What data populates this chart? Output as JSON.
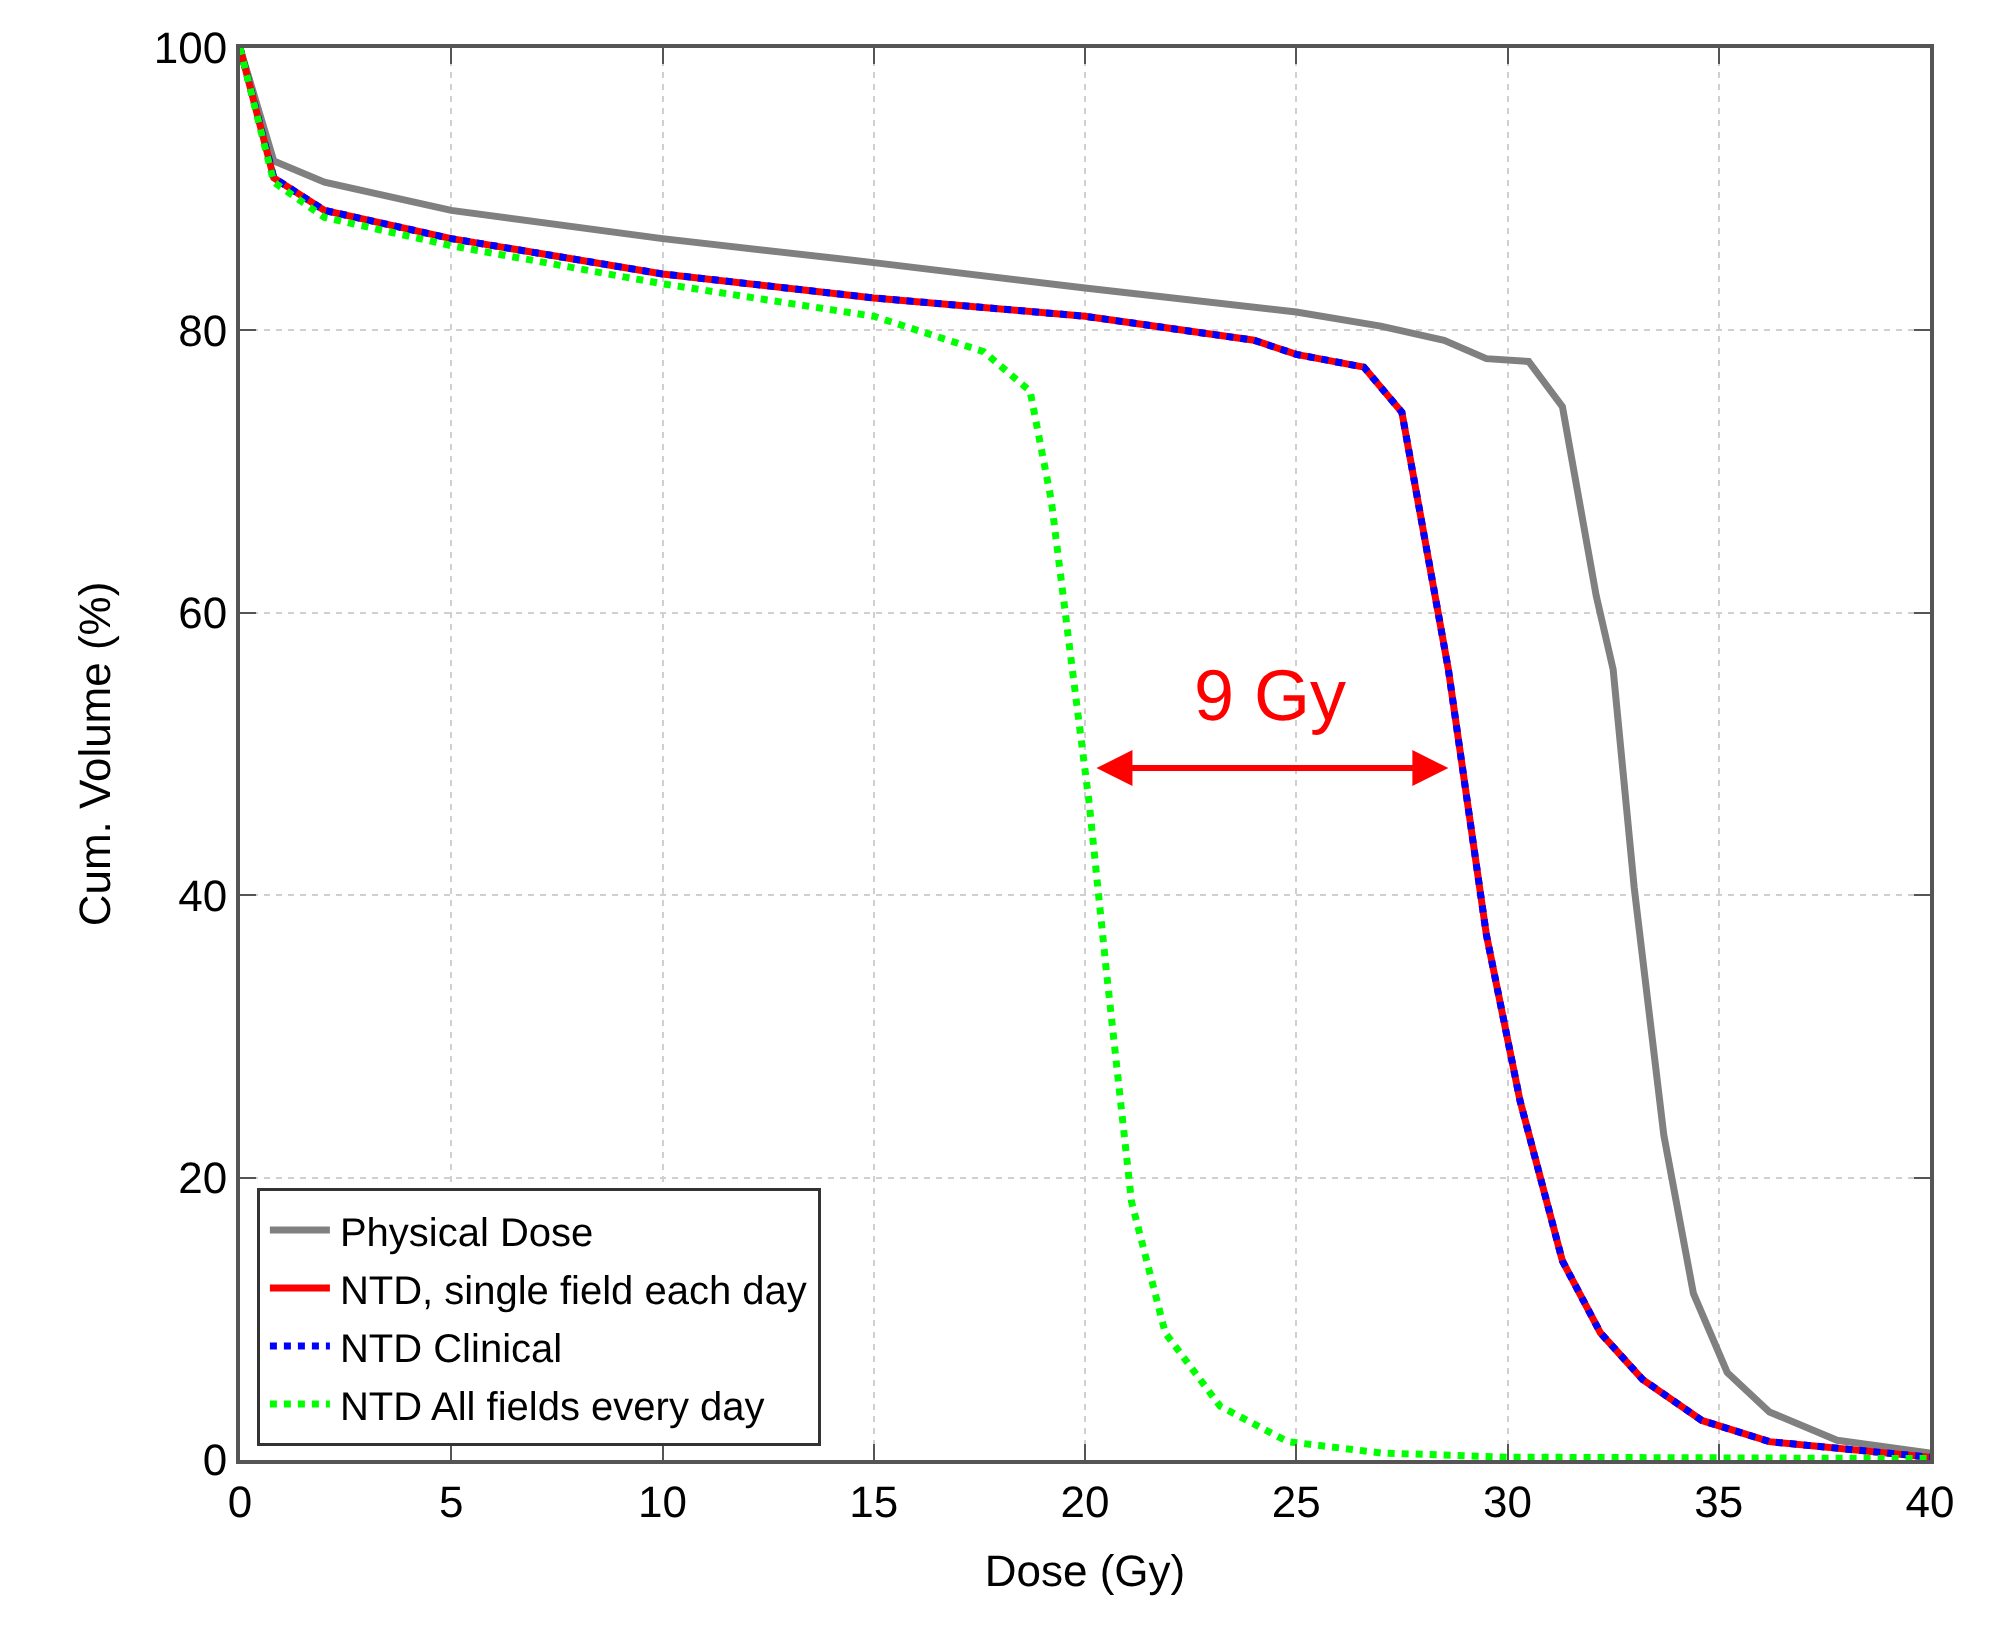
{
  "chart_data": {
    "type": "line",
    "xlabel": "Dose (Gy)",
    "ylabel": "Cum. Volume (%)",
    "xlim": [
      0,
      40
    ],
    "ylim": [
      0,
      100
    ],
    "xticks": [
      0,
      5,
      10,
      15,
      20,
      25,
      30,
      35,
      40
    ],
    "yticks": [
      0,
      20,
      40,
      60,
      80,
      100
    ],
    "grid": true,
    "legend": "bottom left",
    "marker": "none",
    "annotations": [
      "9 Gy"
    ],
    "series": [
      {
        "name": "Physical Dose",
        "color": "#808080",
        "line_style": "solid",
        "x": [
          0,
          0.8,
          2,
          5,
          10,
          15,
          20,
          25,
          27,
          28.5,
          29.5,
          30.5,
          31.3,
          32.1,
          32.5,
          33,
          33.7,
          34.4,
          35.2,
          36.2,
          37.8,
          40
        ],
        "values": [
          100,
          92,
          90.5,
          88.5,
          86.5,
          84.8,
          83,
          81.3,
          80.3,
          79.3,
          78,
          77.8,
          74.6,
          61.2,
          56,
          40.5,
          23,
          11.8,
          6.2,
          3.4,
          1.4,
          0.5
        ]
      },
      {
        "name": "NTD, single field each day",
        "color": "#ff0000",
        "line_style": "solid",
        "x": [
          0,
          0.8,
          2,
          5,
          10,
          15,
          20,
          24,
          25,
          26.6,
          27.5,
          28.6,
          29.5,
          30.3,
          31.3,
          32.2,
          33.2,
          34.6,
          36.2,
          40
        ],
        "values": [
          100,
          90.8,
          88.5,
          86.5,
          84,
          82.3,
          81,
          79.3,
          78.3,
          77.4,
          74.2,
          56,
          37.2,
          25.4,
          14.1,
          9,
          5.7,
          2.8,
          1.3,
          0.2
        ]
      },
      {
        "name": "NTD Clinical",
        "color": "#0000ff",
        "line_style": "dotted",
        "x": [
          0,
          0.8,
          2,
          5,
          10,
          15,
          20,
          24,
          25,
          26.6,
          27.5,
          28.6,
          29.5,
          30.3,
          31.3,
          32.2,
          33.2,
          34.6,
          36.2,
          40
        ],
        "values": [
          100,
          90.8,
          88.5,
          86.5,
          84,
          82.3,
          81,
          79.3,
          78.3,
          77.4,
          74.2,
          56,
          37.2,
          25.4,
          14.1,
          9,
          5.7,
          2.8,
          1.3,
          0.2
        ]
      },
      {
        "name": "NTD All fields every day",
        "color": "#00ff00",
        "line_style": "dotted",
        "x": [
          0,
          0.8,
          2,
          5,
          10,
          15,
          17.6,
          18.7,
          19.2,
          19.7,
          20.1,
          20.5,
          21.1,
          21.9,
          23.2,
          24.8,
          27,
          30,
          40
        ],
        "values": [
          100,
          90.5,
          88,
          86,
          83.3,
          81,
          78.5,
          75.7,
          68,
          56,
          46.5,
          34.8,
          18.3,
          9,
          3.8,
          1.3,
          0.5,
          0.2,
          0.1
        ]
      }
    ]
  }
}
